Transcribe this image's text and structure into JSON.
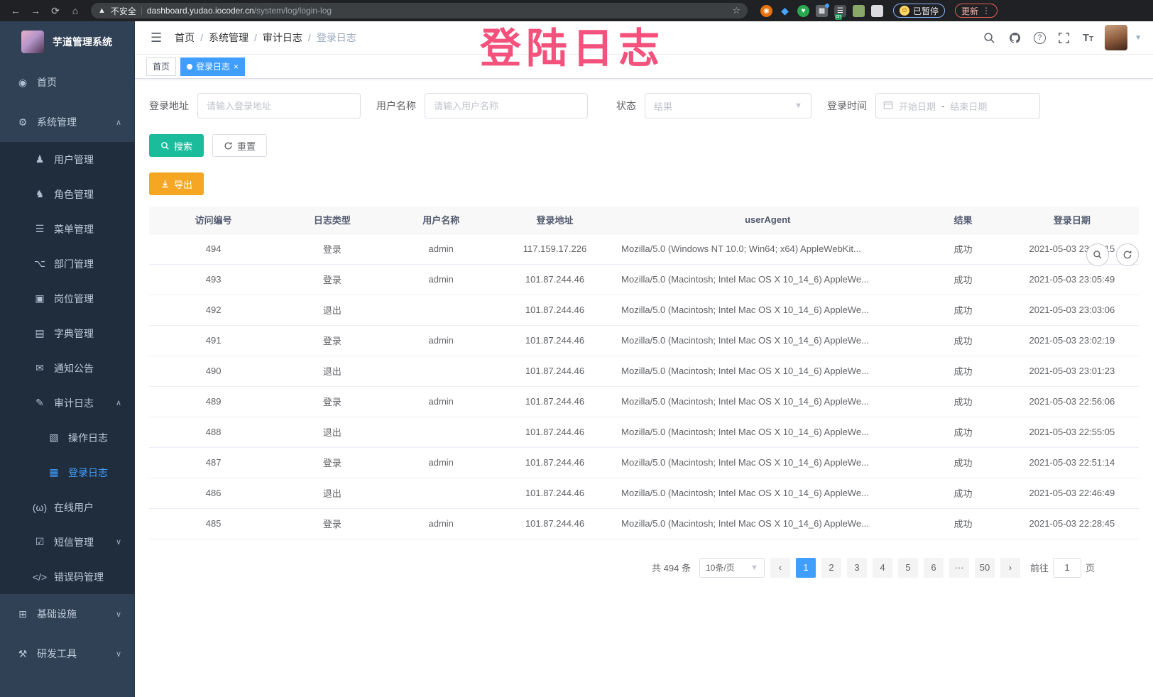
{
  "watermark": "登陆日志",
  "browser": {
    "security_label": "不安全",
    "url_domain": "dashboard.yudao.iocoder.cn",
    "url_path": "/system/log/login-log",
    "paused_label": "已暂停",
    "update_label": "更新",
    "extensions": [
      "orange-extension",
      "blue-diamond-extension",
      "green-heart-extension",
      "grid-extension",
      "list-on-extension",
      "green-pin-extension",
      "puzzle-extension"
    ]
  },
  "sidebar": {
    "title": "芋道管理系统",
    "menu": [
      {
        "label": "首页",
        "icon": "dashboard-icon",
        "level": 0
      },
      {
        "label": "系统管理",
        "icon": "gear-icon",
        "level": 0,
        "arrow": "up"
      },
      {
        "label": "用户管理",
        "icon": "user-icon",
        "level": 1
      },
      {
        "label": "角色管理",
        "icon": "role-icon",
        "level": 1
      },
      {
        "label": "菜单管理",
        "icon": "menu-icon",
        "level": 1
      },
      {
        "label": "部门管理",
        "icon": "dept-tree-icon",
        "level": 1
      },
      {
        "label": "岗位管理",
        "icon": "post-icon",
        "level": 1
      },
      {
        "label": "字典管理",
        "icon": "dict-icon",
        "level": 1
      },
      {
        "label": "通知公告",
        "icon": "notice-icon",
        "level": 1
      },
      {
        "label": "审计日志",
        "icon": "audit-log-icon",
        "level": 1,
        "arrow": "up"
      },
      {
        "label": "操作日志",
        "icon": "operate-log-icon",
        "level": 2
      },
      {
        "label": "登录日志",
        "icon": "login-log-icon",
        "level": 2,
        "active": true
      },
      {
        "label": "在线用户",
        "icon": "online-user-icon",
        "level": 1
      },
      {
        "label": "短信管理",
        "icon": "sms-icon",
        "level": 1,
        "arrow": "down"
      },
      {
        "label": "错误码管理",
        "icon": "error-code-icon",
        "level": 1
      },
      {
        "label": "基础设施",
        "icon": "infra-icon",
        "level": 0,
        "arrow": "down"
      },
      {
        "label": "研发工具",
        "icon": "devtool-icon",
        "level": 0,
        "arrow": "down"
      }
    ]
  },
  "header": {
    "breadcrumb": [
      "首页",
      "系统管理",
      "审计日志",
      "登录日志"
    ]
  },
  "tabs": [
    {
      "label": "首页",
      "active": false
    },
    {
      "label": "登录日志",
      "active": true,
      "closable": true
    }
  ],
  "filters": {
    "login_address_label": "登录地址",
    "login_address_placeholder": "请输入登录地址",
    "username_label": "用户名称",
    "username_placeholder": "请输入用户名称",
    "status_label": "状态",
    "status_placeholder": "结果",
    "login_time_label": "登录时间",
    "date_start_placeholder": "开始日期",
    "date_separator": "-",
    "date_end_placeholder": "结束日期",
    "search_label": "搜索",
    "reset_label": "重置"
  },
  "toolbar": {
    "export_label": "导出"
  },
  "table": {
    "columns": [
      "访问编号",
      "日志类型",
      "用户名称",
      "登录地址",
      "userAgent",
      "结果",
      "登录日期"
    ],
    "col_widths": [
      "13%",
      "11%",
      "11%",
      "12%",
      "31%",
      "8.5%",
      "13.5%"
    ],
    "rows": [
      [
        "494",
        "登录",
        "admin",
        "117.159.17.226",
        "Mozilla/5.0 (Windows NT 10.0; Win64; x64) AppleWebKit...",
        "成功",
        "2021-05-03 23:12:15"
      ],
      [
        "493",
        "登录",
        "admin",
        "101.87.244.46",
        "Mozilla/5.0 (Macintosh; Intel Mac OS X 10_14_6) AppleWe...",
        "成功",
        "2021-05-03 23:05:49"
      ],
      [
        "492",
        "退出",
        "",
        "101.87.244.46",
        "Mozilla/5.0 (Macintosh; Intel Mac OS X 10_14_6) AppleWe...",
        "成功",
        "2021-05-03 23:03:06"
      ],
      [
        "491",
        "登录",
        "admin",
        "101.87.244.46",
        "Mozilla/5.0 (Macintosh; Intel Mac OS X 10_14_6) AppleWe...",
        "成功",
        "2021-05-03 23:02:19"
      ],
      [
        "490",
        "退出",
        "",
        "101.87.244.46",
        "Mozilla/5.0 (Macintosh; Intel Mac OS X 10_14_6) AppleWe...",
        "成功",
        "2021-05-03 23:01:23"
      ],
      [
        "489",
        "登录",
        "admin",
        "101.87.244.46",
        "Mozilla/5.0 (Macintosh; Intel Mac OS X 10_14_6) AppleWe...",
        "成功",
        "2021-05-03 22:56:06"
      ],
      [
        "488",
        "退出",
        "",
        "101.87.244.46",
        "Mozilla/5.0 (Macintosh; Intel Mac OS X 10_14_6) AppleWe...",
        "成功",
        "2021-05-03 22:55:05"
      ],
      [
        "487",
        "登录",
        "admin",
        "101.87.244.46",
        "Mozilla/5.0 (Macintosh; Intel Mac OS X 10_14_6) AppleWe...",
        "成功",
        "2021-05-03 22:51:14"
      ],
      [
        "486",
        "退出",
        "",
        "101.87.244.46",
        "Mozilla/5.0 (Macintosh; Intel Mac OS X 10_14_6) AppleWe...",
        "成功",
        "2021-05-03 22:46:49"
      ],
      [
        "485",
        "登录",
        "admin",
        "101.87.244.46",
        "Mozilla/5.0 (Macintosh; Intel Mac OS X 10_14_6) AppleWe...",
        "成功",
        "2021-05-03 22:28:45"
      ]
    ]
  },
  "pagination": {
    "total_label": "共 494 条",
    "page_size": "10条/页",
    "pages": [
      "1",
      "2",
      "3",
      "4",
      "5",
      "6",
      "···",
      "50"
    ],
    "active_page": "1",
    "goto_label": "前往",
    "goto_value": "1",
    "page_suffix": "页"
  },
  "colors": {
    "accent_blue": "#409EFF",
    "sidebar_bg": "#304156",
    "submenu_bg": "#1f2d3d",
    "search_btn": "#1ABC9C",
    "export_btn": "#F5A623",
    "watermark_pink": "#F4517C"
  }
}
